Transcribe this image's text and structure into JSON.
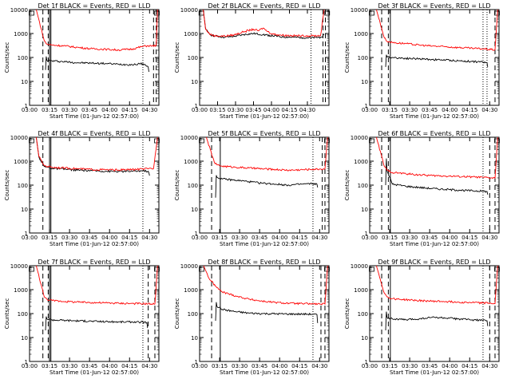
{
  "figure": {
    "x_axis_label": "Start Time (01-Jun-12 02:57:00)",
    "y_axis_label": "Counts/sec",
    "x_tick_labels": [
      "03:00",
      "03:15",
      "03:30",
      "03:45",
      "04:00",
      "04:15",
      "04:30"
    ],
    "y_tick_labels": [
      "1",
      "10",
      "100",
      "1000",
      "10000"
    ]
  },
  "chart_data": [
    {
      "type": "line",
      "title": "Det 1f BLACK = Events, RED = LLD",
      "xlabel": "Start Time (01-Jun-12 02:57:00)",
      "ylabel": "Counts/sec",
      "x_unit": "minutes after 02:57:00",
      "xlim": [
        3,
        100
      ],
      "ylim": [
        1,
        10000
      ],
      "y_scale": "log",
      "grid": false,
      "series": [
        {
          "name": "Events",
          "color": "#000000",
          "x": [
            15,
            15.5,
            16,
            20,
            30,
            40,
            50,
            60,
            70,
            80,
            88,
            92,
            92.5
          ],
          "y": [
            30,
            110,
            75,
            72,
            66,
            60,
            58,
            56,
            52,
            50,
            55,
            40,
            25
          ]
        },
        {
          "name": "LLD",
          "color": "#ff0000",
          "x": [
            8,
            14,
            16,
            20,
            30,
            40,
            50,
            60,
            70,
            80,
            88,
            92,
            95,
            98,
            99
          ],
          "y": [
            10000,
            500,
            360,
            330,
            300,
            260,
            230,
            220,
            205,
            225,
            290,
            310,
            300,
            320,
            10000
          ]
        }
      ],
      "vlines_dashed": [
        13,
        17,
        96,
        98
      ],
      "vlines_solid": [
        18,
        19
      ],
      "vlines_dotted": [
        88
      ]
    },
    {
      "type": "line",
      "title": "Det 2f BLACK = Events, RED = LLD",
      "xlabel": "Start Time (01-Jun-12 02:57:00)",
      "ylabel": "Counts/sec",
      "x_unit": "minutes after 02:57:00",
      "xlim": [
        3,
        111
      ],
      "ylim": [
        1,
        10000
      ],
      "y_scale": "log",
      "grid": false,
      "series": [
        {
          "name": "Events",
          "color": "#000000",
          "x": [
            6,
            8,
            12,
            16,
            24,
            32,
            40,
            48,
            56,
            64,
            72,
            80,
            88,
            96,
            104,
            107
          ],
          "y": [
            10000,
            1500,
            900,
            780,
            700,
            760,
            900,
            1000,
            900,
            800,
            720,
            700,
            680,
            660,
            700,
            900
          ]
        },
        {
          "name": "LLD",
          "color": "#ff0000",
          "x": [
            6,
            8,
            12,
            16,
            24,
            32,
            40,
            48,
            52,
            56,
            60,
            64,
            72,
            80,
            88,
            96,
            104,
            107
          ],
          "y": [
            10000,
            1500,
            900,
            800,
            780,
            880,
            1200,
            1500,
            1300,
            1700,
            1200,
            950,
            850,
            820,
            800,
            800,
            820,
            10000
          ]
        }
      ],
      "vlines_dashed": [
        106,
        108
      ],
      "vlines_solid": [],
      "vlines_dotted": [
        96
      ]
    },
    {
      "type": "line",
      "title": "Det 3f BLACK = Events, RED = LLD",
      "xlabel": "Start Time (01-Jun-12 02:57:00)",
      "ylabel": "Counts/sec",
      "x_unit": "minutes after 02:57:00",
      "xlim": [
        3,
        100
      ],
      "ylim": [
        1,
        10000
      ],
      "y_scale": "log",
      "grid": false,
      "series": [
        {
          "name": "Events",
          "color": "#000000",
          "x": [
            15,
            15.5,
            16,
            20,
            30,
            40,
            50,
            60,
            70,
            80,
            88,
            91,
            91.5
          ],
          "y": [
            40,
            130,
            105,
            100,
            92,
            88,
            82,
            78,
            72,
            68,
            64,
            60,
            40
          ]
        },
        {
          "name": "LLD",
          "color": "#ff0000",
          "x": [
            8,
            14,
            16,
            20,
            30,
            40,
            50,
            60,
            70,
            80,
            88,
            94,
            97,
            99
          ],
          "y": [
            10000,
            650,
            480,
            420,
            380,
            330,
            300,
            280,
            260,
            240,
            230,
            215,
            210,
            10000
          ]
        }
      ],
      "vlines_dashed": [
        12,
        17
      ],
      "vlines_solid": [
        18.5
      ],
      "vlines_dotted": [
        88,
        91
      ],
      "vlines_dashed_late": [
        97
      ]
    },
    {
      "type": "line",
      "title": "Det 4f BLACK = Events, RED = LLD",
      "xlabel": "Start Time (01-Jun-12 02:57:00)",
      "ylabel": "Counts/sec",
      "x_unit": "minutes after 02:57:00",
      "xlim": [
        3,
        100
      ],
      "ylim": [
        1,
        10000
      ],
      "y_scale": "log",
      "grid": false,
      "series": [
        {
          "name": "Events",
          "color": "#000000",
          "x": [
            8,
            10,
            14,
            20,
            30,
            40,
            50,
            60,
            70,
            80,
            88,
            92,
            93
          ],
          "y": [
            10000,
            1500,
            600,
            500,
            460,
            420,
            400,
            380,
            370,
            380,
            400,
            380,
            250
          ]
        },
        {
          "name": "LLD",
          "color": "#ff0000",
          "x": [
            8,
            10,
            14,
            20,
            30,
            40,
            50,
            60,
            70,
            80,
            88,
            92,
            96,
            99
          ],
          "y": [
            10000,
            1600,
            650,
            560,
            520,
            480,
            450,
            440,
            430,
            450,
            470,
            480,
            490,
            10000
          ]
        }
      ],
      "vlines_dashed": [
        13
      ],
      "vlines_solid": [
        18,
        19
      ],
      "vlines_dotted": [
        88
      ]
    },
    {
      "type": "line",
      "title": "Det 5f BLACK = Events, RED = LLD",
      "xlabel": "Start Time (01-Jun-12 02:57:00)",
      "ylabel": "Counts/sec",
      "x_unit": "minutes after 02:57:00",
      "xlim": [
        3,
        100
      ],
      "ylim": [
        1,
        10000
      ],
      "y_scale": "log",
      "grid": false,
      "series": [
        {
          "name": "Events",
          "color": "#000000",
          "x": [
            15,
            15.5,
            16,
            20,
            30,
            40,
            50,
            60,
            70,
            80,
            88,
            91,
            91.5
          ],
          "y": [
            30,
            260,
            210,
            180,
            160,
            140,
            120,
            110,
            100,
            110,
            115,
            110,
            80
          ]
        },
        {
          "name": "LLD",
          "color": "#ff0000",
          "x": [
            8,
            14,
            16,
            20,
            30,
            40,
            50,
            60,
            70,
            80,
            88,
            94,
            97,
            99
          ],
          "y": [
            10000,
            900,
            700,
            620,
            560,
            520,
            480,
            450,
            420,
            440,
            460,
            470,
            480,
            10000
          ]
        }
      ],
      "vlines_dashed": [
        12,
        95,
        97
      ],
      "vlines_solid": [
        18.5
      ],
      "vlines_dotted": [
        88
      ]
    },
    {
      "type": "line",
      "title": "Det 6f BLACK = Events, RED = LLD",
      "xlabel": "Start Time (01-Jun-12 02:57:00)",
      "ylabel": "Counts/sec",
      "x_unit": "minutes after 02:57:00",
      "xlim": [
        3,
        100
      ],
      "ylim": [
        1,
        10000
      ],
      "y_scale": "log",
      "grid": false,
      "series": [
        {
          "name": "Events",
          "color": "#000000",
          "x": [
            15,
            15.5,
            16,
            20,
            30,
            40,
            50,
            60,
            70,
            80,
            88,
            91,
            91.5
          ],
          "y": [
            100,
            1300,
            400,
            110,
            90,
            80,
            72,
            66,
            62,
            58,
            56,
            54,
            40
          ]
        },
        {
          "name": "LLD",
          "color": "#ff0000",
          "x": [
            8,
            14,
            16,
            20,
            30,
            40,
            50,
            60,
            70,
            80,
            88,
            94,
            97,
            99
          ],
          "y": [
            10000,
            600,
            420,
            340,
            300,
            270,
            250,
            240,
            230,
            220,
            210,
            200,
            195,
            10000
          ]
        }
      ],
      "vlines_dashed": [
        12,
        17,
        93,
        97
      ],
      "vlines_solid": [
        18.5
      ],
      "vlines_dotted": [
        88
      ]
    },
    {
      "type": "line",
      "title": "Det 7f BLACK = Events, RED = LLD",
      "xlabel": "Start Time (01-Jun-12 02:57:00)",
      "ylabel": "Counts/sec",
      "x_unit": "minutes after 02:57:00",
      "xlim": [
        3,
        100
      ],
      "ylim": [
        1,
        10000
      ],
      "y_scale": "log",
      "grid": false,
      "series": [
        {
          "name": "Events",
          "color": "#000000",
          "x": [
            15,
            15.5,
            16,
            20,
            30,
            40,
            50,
            60,
            70,
            80,
            88,
            91,
            91.5
          ],
          "y": [
            20,
            75,
            60,
            55,
            52,
            50,
            48,
            46,
            45,
            45,
            44,
            42,
            25
          ]
        },
        {
          "name": "LLD",
          "color": "#ff0000",
          "x": [
            8,
            14,
            16,
            20,
            30,
            40,
            50,
            60,
            70,
            80,
            88,
            94,
            97,
            99
          ],
          "y": [
            10000,
            500,
            400,
            350,
            320,
            300,
            290,
            280,
            270,
            265,
            260,
            255,
            250,
            10000
          ]
        }
      ],
      "vlines_dashed": [
        13,
        17,
        92,
        97
      ],
      "vlines_solid": [
        18,
        19
      ],
      "vlines_dotted": [
        88
      ]
    },
    {
      "type": "line",
      "title": "Det 8f BLACK = Events, RED = LLD",
      "xlabel": "Start Time (01-Jun-12 02:57:00)",
      "ylabel": "Counts/sec",
      "x_unit": "minutes after 02:57:00",
      "xlim": [
        3,
        100
      ],
      "ylim": [
        1,
        10000
      ],
      "y_scale": "log",
      "grid": false,
      "series": [
        {
          "name": "Events",
          "color": "#000000",
          "x": [
            15,
            15.5,
            16,
            20,
            30,
            40,
            50,
            60,
            70,
            80,
            88,
            91,
            91.5
          ],
          "y": [
            50,
            300,
            200,
            150,
            120,
            105,
            100,
            98,
            96,
            95,
            95,
            90,
            40
          ]
        },
        {
          "name": "LLD",
          "color": "#ff0000",
          "x": [
            6,
            10,
            16,
            20,
            30,
            40,
            50,
            60,
            70,
            80,
            88,
            94,
            97,
            99
          ],
          "y": [
            10000,
            3000,
            1200,
            800,
            550,
            400,
            330,
            290,
            270,
            260,
            255,
            250,
            250,
            10000
          ]
        }
      ],
      "vlines_dashed": [
        12,
        94,
        97
      ],
      "vlines_solid": [
        18.5
      ],
      "vlines_dotted": [
        88
      ]
    },
    {
      "type": "line",
      "title": "Det 9f BLACK = Events, RED = LLD",
      "xlabel": "Start Time (01-Jun-12 02:57:00)",
      "ylabel": "Counts/sec",
      "x_unit": "minutes after 02:57:00",
      "xlim": [
        3,
        100
      ],
      "ylim": [
        1,
        10000
      ],
      "y_scale": "log",
      "grid": false,
      "series": [
        {
          "name": "Events",
          "color": "#000000",
          "x": [
            15,
            15.5,
            16,
            20,
            30,
            40,
            50,
            60,
            70,
            80,
            88,
            91,
            91.5
          ],
          "y": [
            20,
            120,
            70,
            60,
            55,
            60,
            70,
            65,
            60,
            55,
            52,
            50,
            30
          ]
        },
        {
          "name": "LLD",
          "color": "#ff0000",
          "x": [
            8,
            14,
            16,
            20,
            30,
            40,
            50,
            60,
            70,
            80,
            88,
            94,
            97,
            99
          ],
          "y": [
            10000,
            700,
            500,
            420,
            380,
            350,
            330,
            320,
            300,
            290,
            280,
            270,
            260,
            10000
          ]
        }
      ],
      "vlines_dashed": [
        12,
        17,
        93,
        97
      ],
      "vlines_solid": [
        18.5
      ],
      "vlines_dotted": [
        88
      ]
    }
  ]
}
